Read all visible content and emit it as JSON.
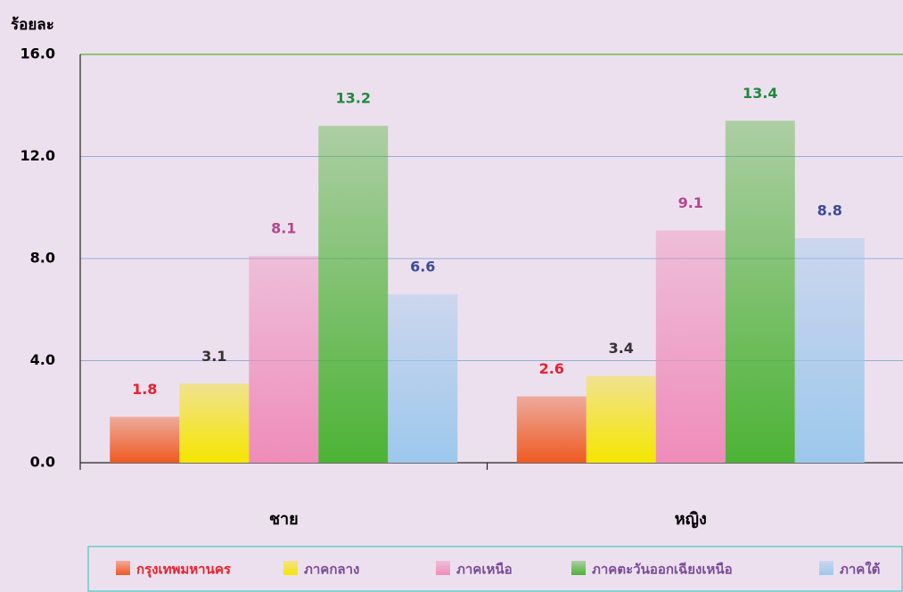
{
  "chart_data": {
    "type": "bar",
    "y_label": "ร้อยละ",
    "categories": [
      "ชาย",
      "หญิง"
    ],
    "series": [
      {
        "name": "กรุงเทพมหานคร",
        "color": "#ef5a22",
        "label_color": "#e8212d",
        "values": [
          1.8,
          2.6
        ]
      },
      {
        "name": "ภาคกลาง",
        "color": "#f5e600",
        "label_color": "#333333",
        "values": [
          3.1,
          3.4
        ]
      },
      {
        "name": "ภาคเหนือ",
        "color": "#ef8cba",
        "label_color": "#b5468f",
        "values": [
          8.1,
          9.1
        ]
      },
      {
        "name": "ภาคตะวันออกเฉียงเหนือ",
        "color": "#4cb335",
        "label_color": "#1f8a3b",
        "values": [
          13.2,
          13.4
        ]
      },
      {
        "name": "ภาคใต้",
        "color": "#9cc8ec",
        "label_color": "#3b4a9a",
        "values": [
          6.6,
          8.8
        ]
      }
    ],
    "ylim": [
      0,
      16
    ],
    "yticks": [
      {
        "value": 0,
        "label": "0.0"
      },
      {
        "value": 4,
        "label": "4.0"
      },
      {
        "value": 8,
        "label": "8.0"
      },
      {
        "value": 12,
        "label": "12.0"
      },
      {
        "value": 16,
        "label": "16.0"
      }
    ],
    "grid": true,
    "legend": "bottom"
  }
}
